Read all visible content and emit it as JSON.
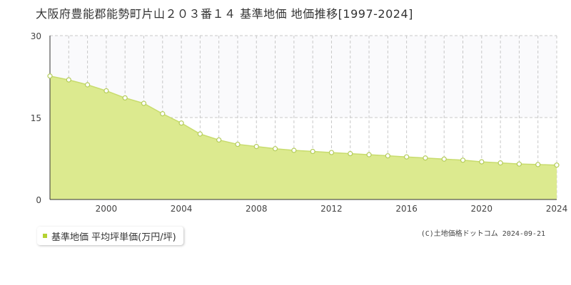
{
  "chart_data": {
    "type": "area",
    "title": "大阪府豊能郡能勢町片山２０３番１４ 基準地価 地価推移[1997-2024]",
    "x": [
      1997,
      1998,
      1999,
      2000,
      2001,
      2002,
      2003,
      2004,
      2005,
      2006,
      2007,
      2008,
      2009,
      2010,
      2011,
      2012,
      2013,
      2014,
      2015,
      2016,
      2017,
      2018,
      2019,
      2020,
      2021,
      2022,
      2023,
      2024
    ],
    "series": [
      {
        "name": "基準地価 平均坪単価(万円/坪)",
        "values": [
          22.6,
          21.9,
          21.0,
          19.9,
          18.6,
          17.6,
          15.7,
          14.0,
          12.0,
          10.9,
          10.1,
          9.7,
          9.3,
          9.0,
          8.8,
          8.6,
          8.4,
          8.2,
          8.0,
          7.8,
          7.6,
          7.4,
          7.2,
          6.9,
          6.7,
          6.5,
          6.4,
          6.3
        ]
      }
    ],
    "xticks": [
      "2000",
      "2004",
      "2008",
      "2012",
      "2016",
      "2020",
      "2024"
    ],
    "yticks": [
      "0",
      "15",
      "30"
    ],
    "xlim": [
      1997,
      2024
    ],
    "ylim": [
      0,
      30
    ],
    "xlabel": "",
    "ylabel": "",
    "grid": true,
    "legend_position": "bottom-left",
    "colors": {
      "fill": "#dcea8f",
      "line": "#c8dc6e",
      "marker_fill": "#ffffff",
      "marker_stroke": "#b4cc5a",
      "legend_swatch": "#b4d232",
      "band": "#fafafc"
    }
  },
  "credit": "(C)土地価格ドットコム 2024-09-21"
}
